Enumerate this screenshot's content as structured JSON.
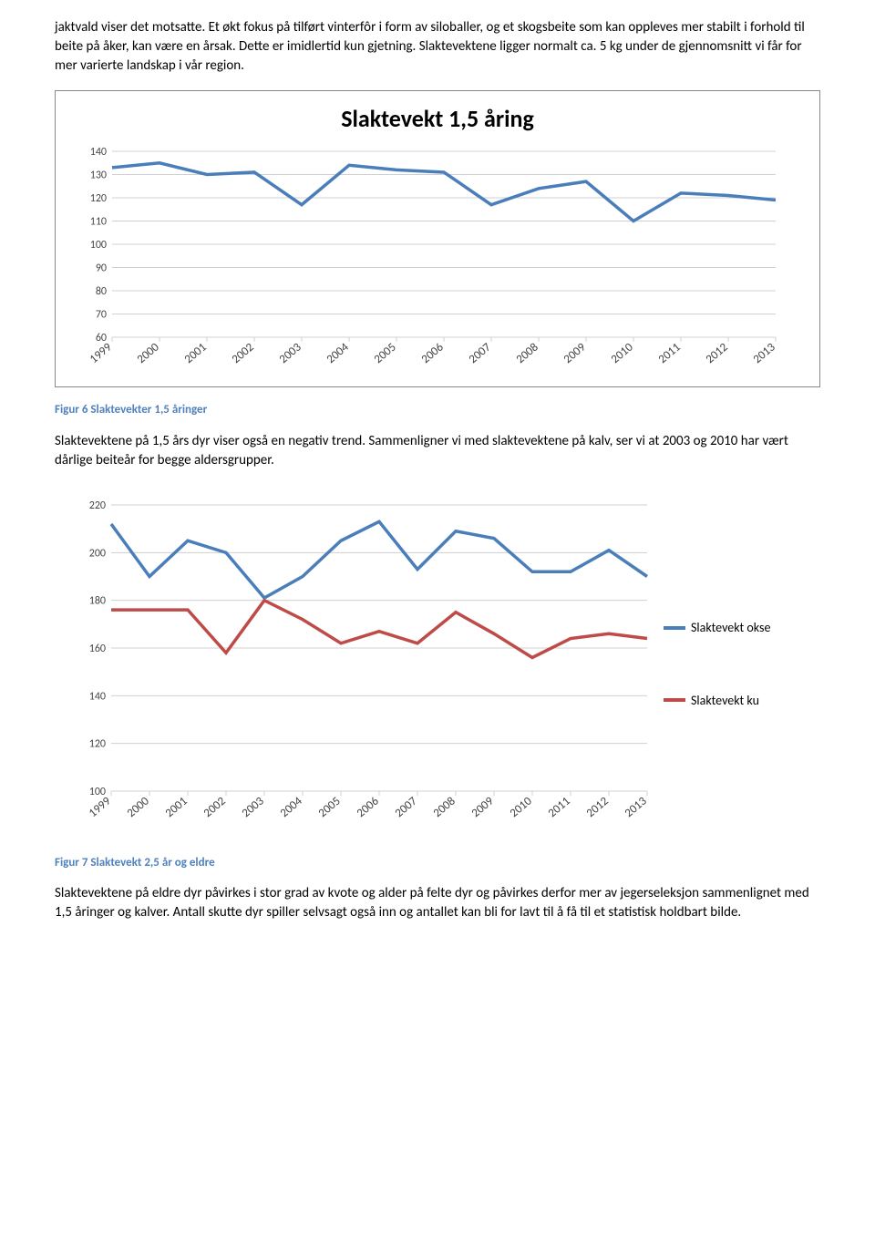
{
  "paragraphs": {
    "p1": "jaktvald viser det motsatte. Et økt fokus på tilført vinterfôr i form av siloballer, og et skogsbeite som kan oppleves mer stabilt i forhold til beite på åker, kan være en årsak. Dette er imidlertid kun gjetning. Slaktevektene ligger normalt ca. 5 kg under de gjennomsnitt vi får for mer varierte landskap i vår region.",
    "p2": "Slaktevektene på 1,5 års dyr viser også en negativ trend. Sammenligner vi med slaktevektene på kalv, ser vi at 2003 og 2010 har vært dårlige beiteår for begge aldersgrupper.",
    "p3": "Slaktevektene på eldre dyr påvirkes i stor grad av kvote og alder på felte dyr og påvirkes derfor mer av jegerseleksjon sammenlignet med 1,5 åringer og kalver. Antall skutte dyr spiller selvsagt også inn og antallet kan bli for lavt til å få til et statistisk holdbart bilde."
  },
  "chart1": {
    "title": "Slaktevekt 1,5 åring",
    "type": "line",
    "categories": [
      "1999",
      "2000",
      "2001",
      "2002",
      "2003",
      "2004",
      "2005",
      "2006",
      "2007",
      "2008",
      "2009",
      "2010",
      "2011",
      "2012",
      "2013"
    ],
    "values": [
      133,
      135,
      130,
      131,
      117,
      134,
      132,
      131,
      117,
      124,
      127,
      110,
      122,
      121,
      119
    ],
    "line_color": "#4a7ebb",
    "ylim": [
      60,
      140
    ],
    "yticks": [
      60,
      70,
      80,
      90,
      100,
      110,
      120,
      130,
      140
    ],
    "grid_color": "#d0d0d0",
    "background": "#ffffff",
    "title_fontsize": 26,
    "line_width": 3.5
  },
  "chart2": {
    "type": "line",
    "categories": [
      "1999",
      "2000",
      "2001",
      "2002",
      "2003",
      "2004",
      "2005",
      "2006",
      "2007",
      "2008",
      "2009",
      "2010",
      "2011",
      "2012",
      "2013"
    ],
    "series": [
      {
        "name": "Slaktevekt okse",
        "color": "#4a7ebb",
        "values": [
          212,
          190,
          205,
          200,
          181,
          190,
          205,
          213,
          193,
          209,
          206,
          192,
          192,
          201,
          190
        ]
      },
      {
        "name": "Slaktevekt ku",
        "color": "#be4b48",
        "values": [
          176,
          176,
          176,
          158,
          180,
          172,
          162,
          167,
          162,
          175,
          166,
          156,
          164,
          166,
          164
        ]
      }
    ],
    "ylim": [
      100,
      220
    ],
    "yticks": [
      100,
      120,
      140,
      160,
      180,
      200,
      220
    ],
    "grid_color": "#d0d0d0",
    "background": "#ffffff",
    "line_width": 3.5
  },
  "captions": {
    "fig6": "Figur 6 Slaktevekter 1,5 åringer",
    "fig7": "Figur 7 Slaktevekt 2,5 år og eldre"
  }
}
